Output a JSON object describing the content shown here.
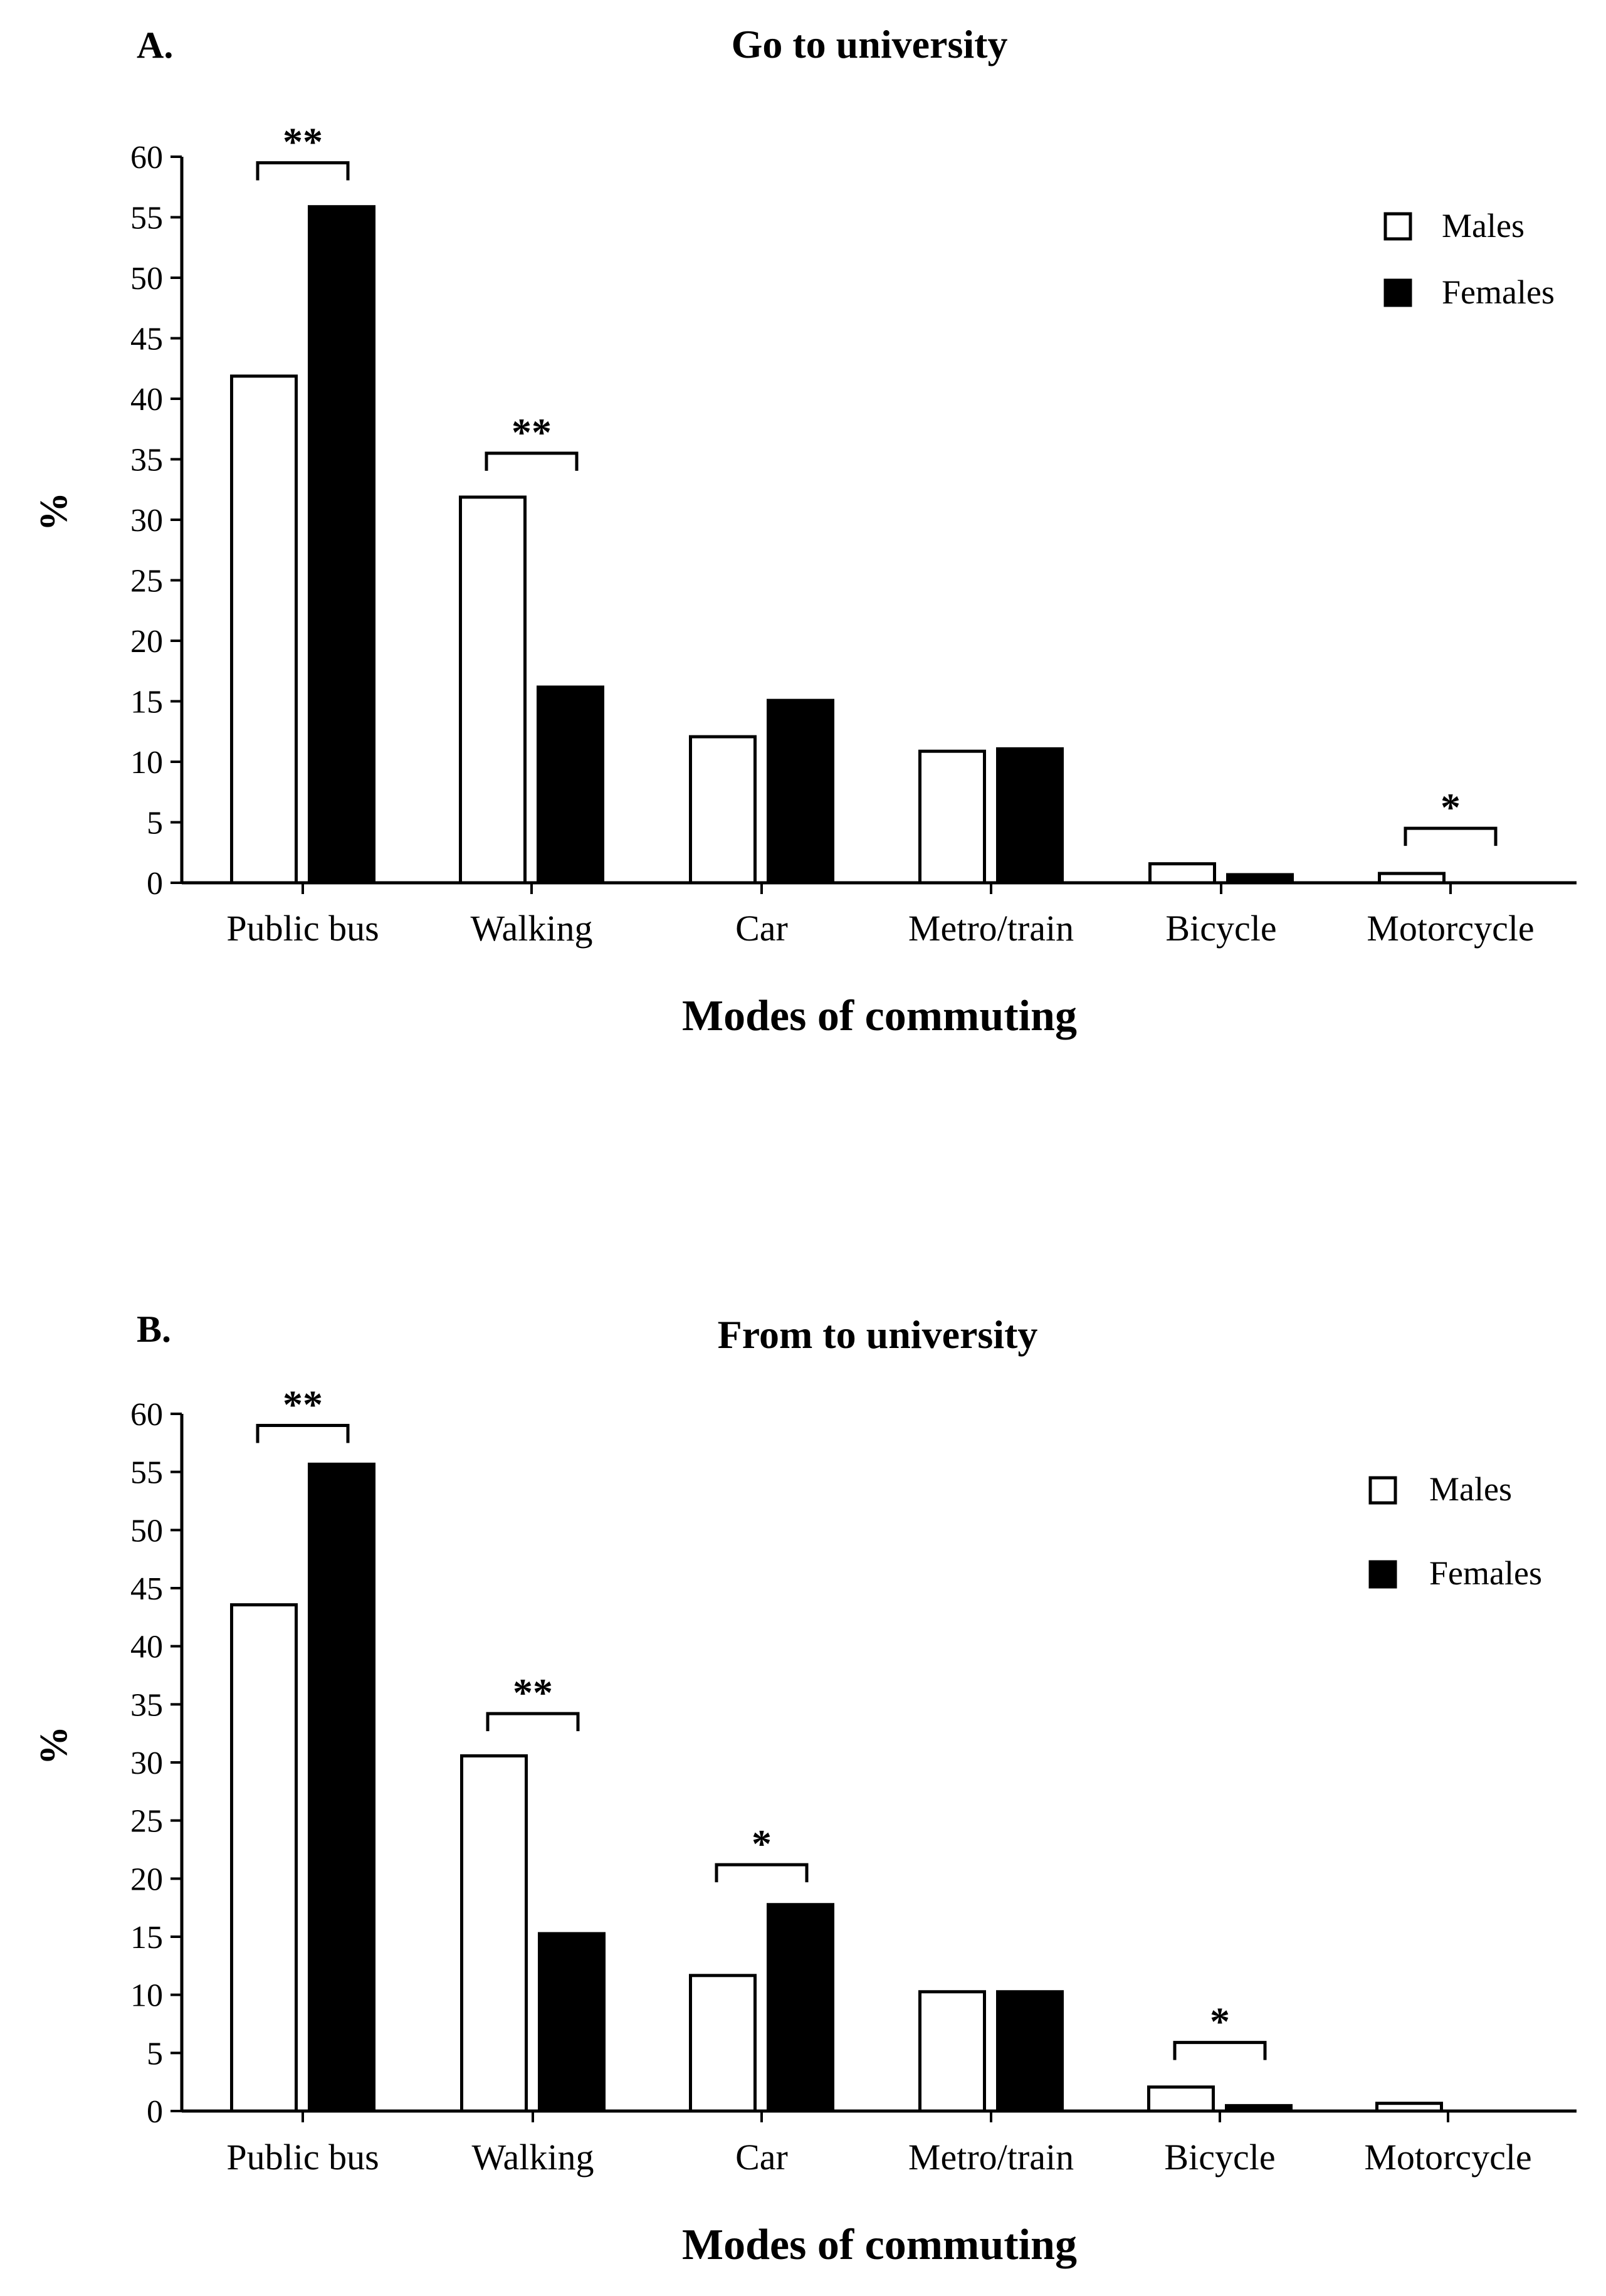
{
  "chart_data": [
    {
      "type": "bar",
      "panel": "A.",
      "title": "Go to university",
      "xlabel": "Modes of commuting",
      "ylabel": "%",
      "ylim": [
        0,
        60
      ],
      "yticks": [
        0,
        5,
        10,
        15,
        20,
        25,
        30,
        35,
        40,
        45,
        50,
        55,
        60
      ],
      "grid": false,
      "legend_position": "top-right",
      "categories": [
        "Public bus",
        "Walking",
        "Car",
        "Metro/train",
        "Bicycle",
        "Motorcycle"
      ],
      "series": [
        {
          "name": "Males",
          "fill": "#ffffff",
          "values": [
            42,
            32,
            12.2,
            11,
            1.7,
            0.9
          ]
        },
        {
          "name": "Females",
          "fill": "#000000",
          "values": [
            56,
            16.3,
            15.2,
            11.2,
            0.8,
            0
          ]
        }
      ],
      "annotations": [
        {
          "category": "Public bus",
          "label": "**",
          "at": 59.5
        },
        {
          "category": "Walking",
          "label": "**",
          "at": 35.5
        },
        {
          "category": "Motorcycle",
          "label": "*",
          "at": 4.5
        }
      ]
    },
    {
      "type": "bar",
      "panel": "B.",
      "title": "From to university",
      "xlabel": "Modes of commuting",
      "ylabel": "%",
      "ylim": [
        0,
        60
      ],
      "yticks": [
        0,
        5,
        10,
        15,
        20,
        25,
        30,
        35,
        40,
        45,
        50,
        55,
        60
      ],
      "grid": false,
      "legend_position": "top-right",
      "categories": [
        "Public bus",
        "Walking",
        "Car",
        "Metro/train",
        "Bicycle",
        "Motorcycle"
      ],
      "series": [
        {
          "name": "Males",
          "fill": "#ffffff",
          "values": [
            43.7,
            30.7,
            11.8,
            10.4,
            2.2,
            0.8
          ]
        },
        {
          "name": "Females",
          "fill": "#000000",
          "values": [
            55.8,
            15.4,
            17.9,
            10.4,
            0.6,
            0
          ]
        }
      ],
      "annotations": [
        {
          "category": "Public bus",
          "label": "**",
          "at": 59
        },
        {
          "category": "Walking",
          "label": "**",
          "at": 34.2
        },
        {
          "category": "Car",
          "label": "*",
          "at": 21.2
        },
        {
          "category": "Bicycle",
          "label": "*",
          "at": 5.9
        }
      ]
    }
  ]
}
